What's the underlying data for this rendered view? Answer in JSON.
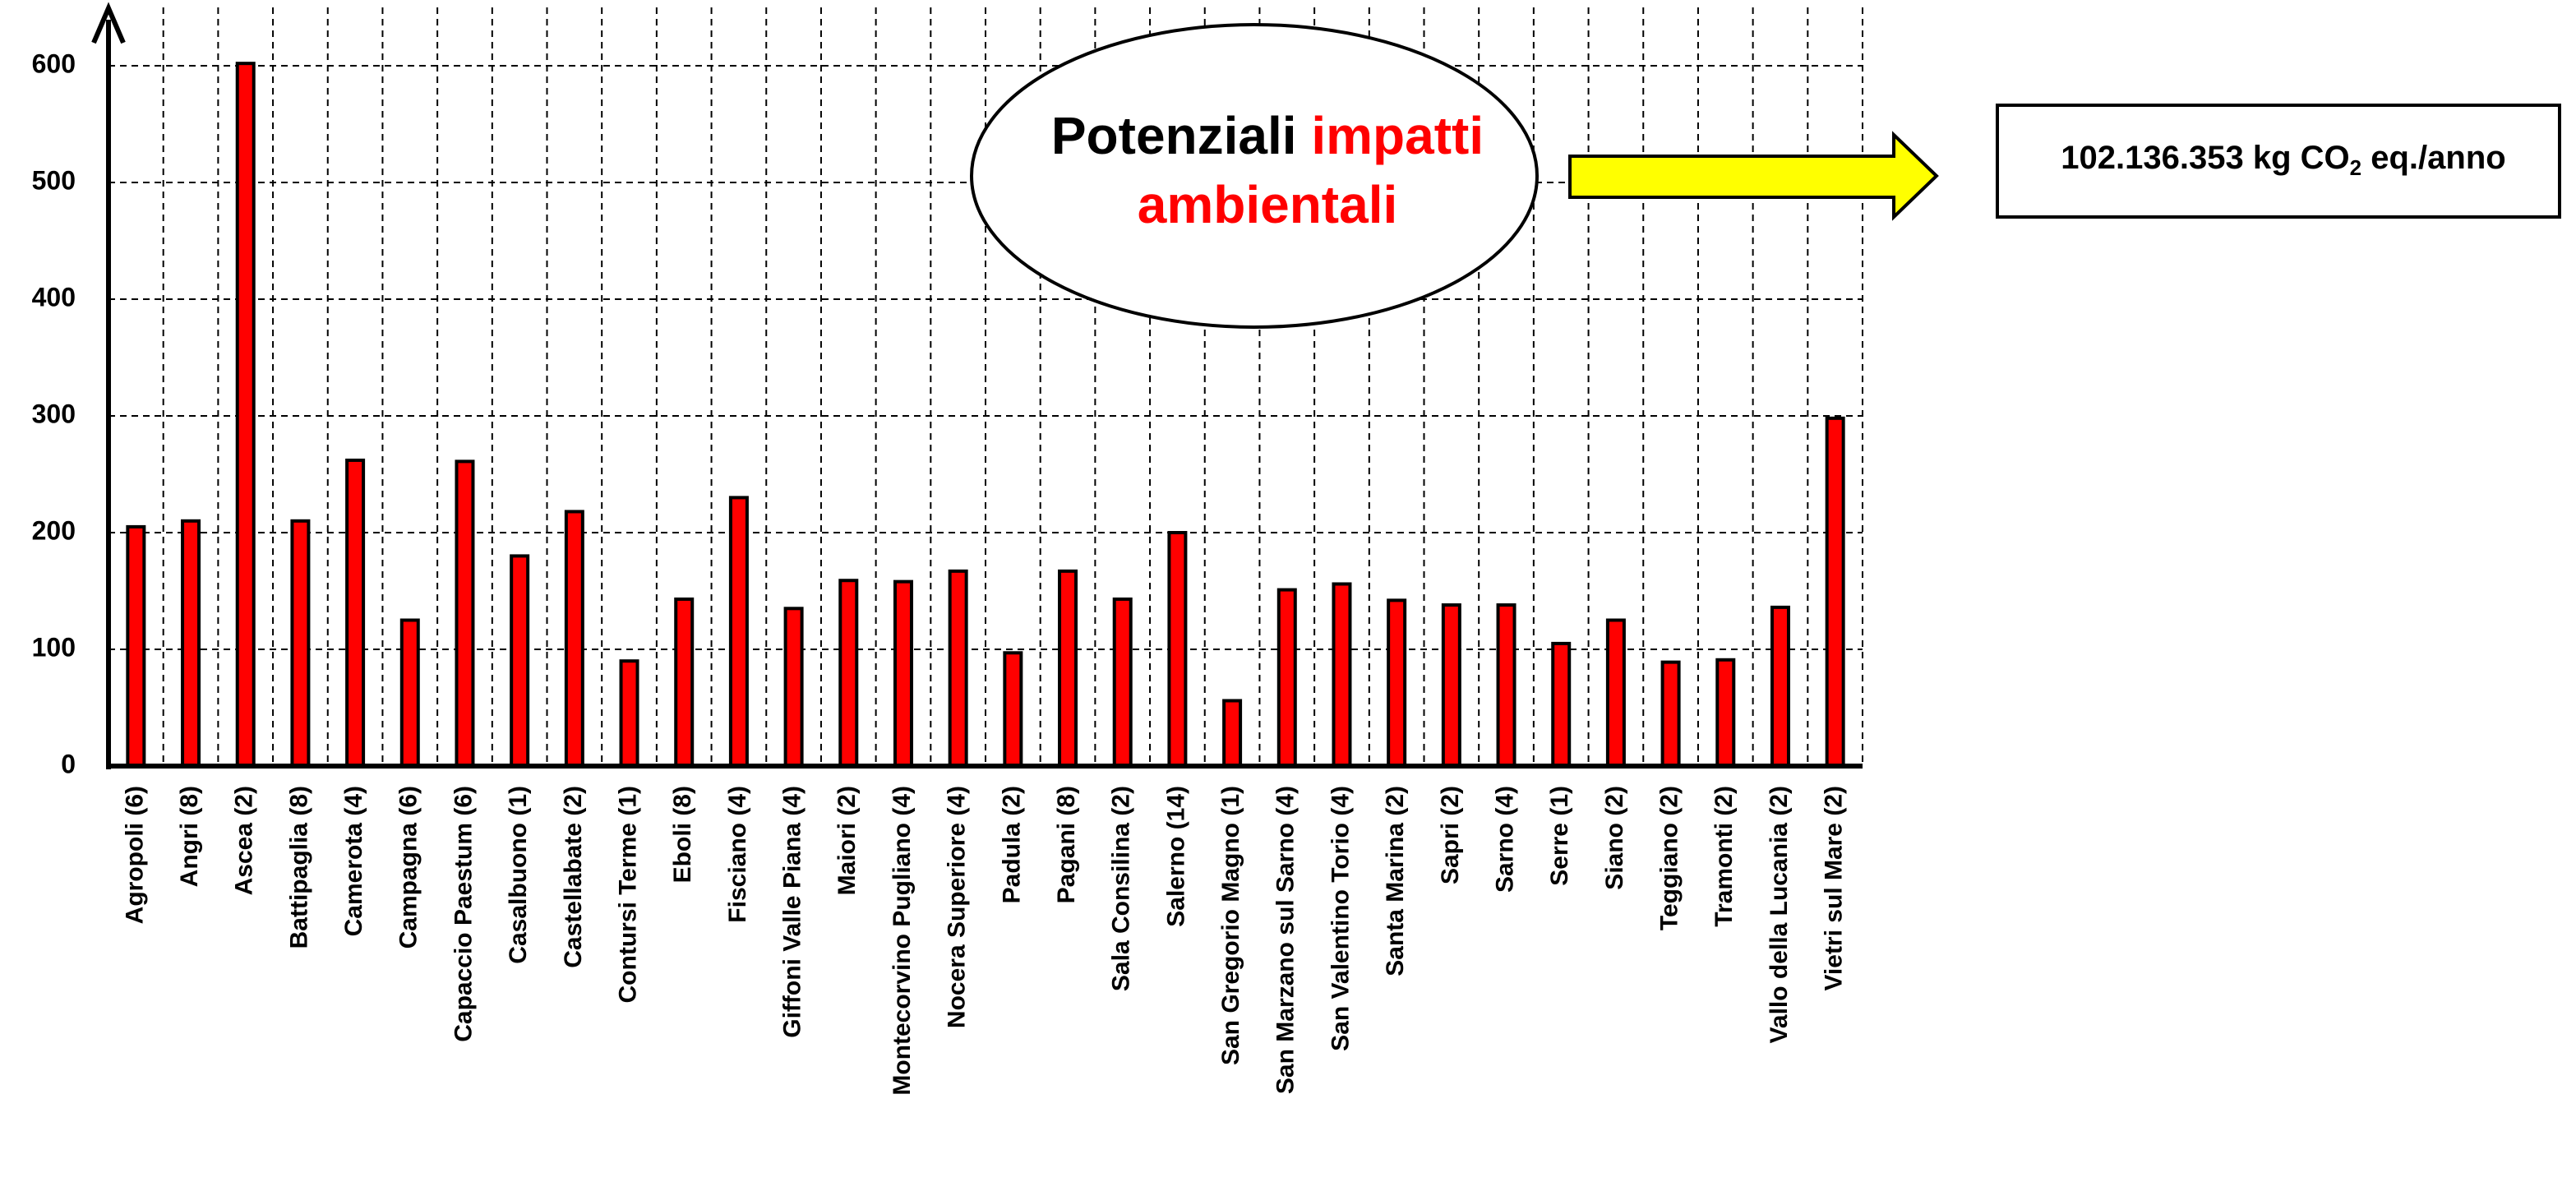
{
  "chart_data": {
    "type": "bar",
    "categories": [
      "Agropoli (6)",
      "Angri (8)",
      "Ascea (2)",
      "Battipaglia (8)",
      "Camerota (4)",
      "Campagna (6)",
      "Capaccio Paestum (6)",
      "Casalbuono (1)",
      "Castellabate (2)",
      "Contursi Terme (1)",
      "Eboli (8)",
      "Fisciano (4)",
      "Giffoni Valle Piana (4)",
      "Maiori (2)",
      "Montecorvino Pugliano (4)",
      "Nocera Superiore (4)",
      "Padula (2)",
      "Pagani (8)",
      "Sala Consilina (2)",
      "Salerno (14)",
      "San Gregorio Magno (1)",
      "San Marzano sul Sarno (4)",
      "San Valentino Torio (4)",
      "Santa Marina (2)",
      "Sapri (2)",
      "Sarno (4)",
      "Serre (1)",
      "Siano (2)",
      "Teggiano (2)",
      "Tramonti (2)",
      "Vallo della Lucania (2)",
      "Vietri sul Mare (2)"
    ],
    "values": [
      205,
      210,
      602,
      210,
      262,
      125,
      261,
      180,
      218,
      90,
      143,
      230,
      135,
      159,
      158,
      167,
      97,
      167,
      143,
      200,
      56,
      151,
      156,
      142,
      138,
      138,
      105,
      125,
      89,
      91,
      136,
      298
    ],
    "color": "#ff0000",
    "ylim": [
      0,
      650
    ],
    "yticks": [
      0,
      100,
      200,
      300,
      400,
      500,
      600
    ],
    "grid": true,
    "annotations": {
      "ellipse": [
        "Potenziali ",
        "impatti",
        "ambientali"
      ],
      "box": [
        "102.136.353 kg CO",
        "2",
        " eq./anno"
      ]
    }
  }
}
